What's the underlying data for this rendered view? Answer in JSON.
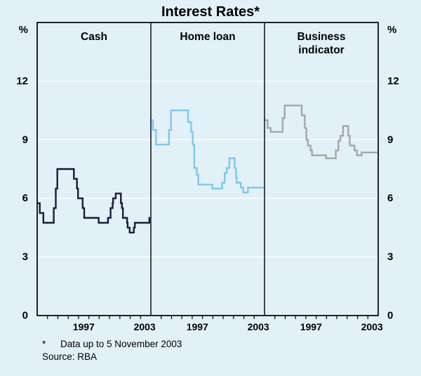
{
  "page": {
    "footnote": {
      "marker": "*",
      "text": "Data up to 5 November 2003"
    },
    "source": "Source: RBA"
  },
  "chart_data": {
    "type": "line",
    "subtype": "step",
    "title": "Interest Rates*",
    "unit": "%",
    "ylabel": "%",
    "ylim": [
      0,
      15
    ],
    "yticks": [
      0,
      3,
      6,
      9,
      12
    ],
    "x_domain": [
      1993,
      2004
    ],
    "grid": true,
    "legend_position": "none",
    "background": "#e2f0f8",
    "gridline_color": "#ffffff",
    "frame_color": "#000000",
    "xticks": [
      {
        "label": "1997",
        "pos": 1997.5
      },
      {
        "label": "2003",
        "pos": 2003.4
      }
    ],
    "panels": [
      {
        "label": "Cash",
        "color": "#1b1b3a",
        "points": [
          [
            1993.0,
            5.75
          ],
          [
            1993.25,
            5.25
          ],
          [
            1993.6,
            4.75
          ],
          [
            1994.6,
            5.5
          ],
          [
            1994.8,
            6.5
          ],
          [
            1994.95,
            7.5
          ],
          [
            1996.55,
            7.0
          ],
          [
            1996.85,
            6.5
          ],
          [
            1996.95,
            6.0
          ],
          [
            1997.4,
            5.5
          ],
          [
            1997.55,
            5.0
          ],
          [
            1998.95,
            4.75
          ],
          [
            1999.85,
            5.0
          ],
          [
            2000.1,
            5.5
          ],
          [
            2000.3,
            5.75
          ],
          [
            2000.35,
            6.0
          ],
          [
            2000.6,
            6.25
          ],
          [
            2001.1,
            5.75
          ],
          [
            2001.2,
            5.5
          ],
          [
            2001.3,
            5.0
          ],
          [
            2001.7,
            4.75
          ],
          [
            2001.75,
            4.5
          ],
          [
            2001.95,
            4.25
          ],
          [
            2002.35,
            4.5
          ],
          [
            2002.45,
            4.75
          ],
          [
            2003.85,
            5.0
          ],
          [
            2003.92,
            5.0
          ]
        ]
      },
      {
        "label": "Home loan",
        "color": "#7ec8ea",
        "points": [
          [
            1993.0,
            10.0
          ],
          [
            1993.2,
            9.5
          ],
          [
            1993.5,
            8.75
          ],
          [
            1994.75,
            9.5
          ],
          [
            1994.95,
            10.5
          ],
          [
            1996.6,
            9.9
          ],
          [
            1996.9,
            9.4
          ],
          [
            1997.05,
            8.75
          ],
          [
            1997.2,
            7.55
          ],
          [
            1997.45,
            7.2
          ],
          [
            1997.6,
            6.7
          ],
          [
            1998.95,
            6.5
          ],
          [
            1999.9,
            6.8
          ],
          [
            2000.15,
            7.3
          ],
          [
            2000.35,
            7.55
          ],
          [
            2000.6,
            8.05
          ],
          [
            2001.1,
            7.55
          ],
          [
            2001.25,
            7.05
          ],
          [
            2001.3,
            6.8
          ],
          [
            2001.7,
            6.55
          ],
          [
            2001.95,
            6.3
          ],
          [
            2002.4,
            6.55
          ],
          [
            2003.92,
            6.55
          ]
        ]
      },
      {
        "label": "Business indicator",
        "label_lines": [
          "Business",
          "indicator"
        ],
        "color": "#a6a6a6",
        "points": [
          [
            1993.0,
            10.0
          ],
          [
            1993.3,
            9.6
          ],
          [
            1993.6,
            9.4
          ],
          [
            1994.75,
            10.1
          ],
          [
            1994.95,
            10.75
          ],
          [
            1996.6,
            10.25
          ],
          [
            1996.9,
            9.6
          ],
          [
            1997.05,
            9.0
          ],
          [
            1997.2,
            8.7
          ],
          [
            1997.45,
            8.45
          ],
          [
            1997.6,
            8.2
          ],
          [
            1998.95,
            8.05
          ],
          [
            1999.9,
            8.45
          ],
          [
            2000.15,
            8.95
          ],
          [
            2000.35,
            9.2
          ],
          [
            2000.6,
            9.7
          ],
          [
            2001.1,
            9.2
          ],
          [
            2001.25,
            8.7
          ],
          [
            2001.7,
            8.45
          ],
          [
            2001.95,
            8.2
          ],
          [
            2002.4,
            8.35
          ],
          [
            2003.92,
            8.35
          ]
        ]
      }
    ]
  }
}
